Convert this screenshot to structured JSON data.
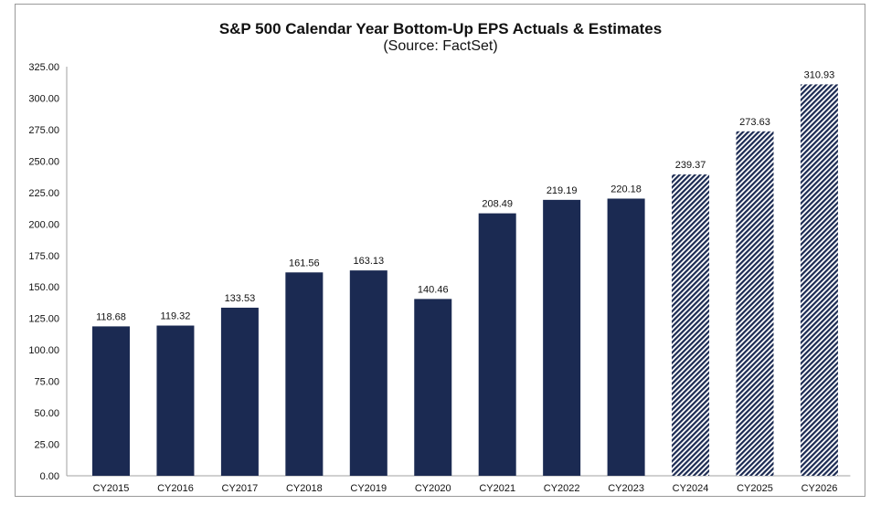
{
  "chart_data": {
    "type": "bar",
    "title": "S&P 500 Calendar Year Bottom-Up EPS Actuals & Estimates",
    "subtitle": "(Source: FactSet)",
    "categories": [
      "CY2015",
      "CY2016",
      "CY2017",
      "CY2018",
      "CY2019",
      "CY2020",
      "CY2021",
      "CY2022",
      "CY2023",
      "CY2024",
      "CY2025",
      "CY2026"
    ],
    "values": [
      118.68,
      119.32,
      133.53,
      161.56,
      163.13,
      140.46,
      208.49,
      219.19,
      220.18,
      239.37,
      273.63,
      310.93
    ],
    "data_labels": [
      "118.68",
      "119.32",
      "133.53",
      "161.56",
      "163.13",
      "140.46",
      "208.49",
      "219.19",
      "220.18",
      "239.37",
      "273.63",
      "310.93"
    ],
    "bar_style": [
      "solid",
      "solid",
      "solid",
      "solid",
      "solid",
      "solid",
      "solid",
      "solid",
      "solid",
      "hatched",
      "hatched",
      "hatched"
    ],
    "ylim": [
      0,
      325
    ],
    "yticks": [
      "0.00",
      "25.00",
      "50.00",
      "75.00",
      "100.00",
      "125.00",
      "150.00",
      "175.00",
      "200.00",
      "225.00",
      "250.00",
      "275.00",
      "300.00",
      "325.00"
    ],
    "xlabel": "",
    "ylabel": "",
    "grid": false,
    "legend": "none",
    "colors": {
      "bar": "#1b2a52",
      "hatch_bg": "#ffffff",
      "axis": "#a0a0a0"
    }
  }
}
